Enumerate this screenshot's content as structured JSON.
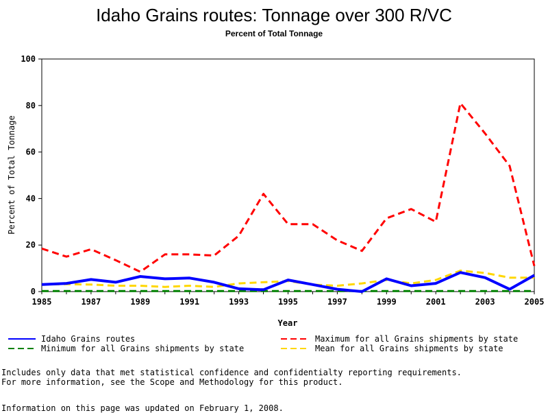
{
  "chart_data": {
    "type": "line",
    "title": "Idaho Grains routes: Tonnage over 300 R/VC",
    "subtitle": "Percent of Total Tonnage",
    "xlabel": "Year",
    "ylabel": "Percent of Total Tonnage",
    "xlim": [
      1985,
      2005
    ],
    "ylim": [
      0,
      100
    ],
    "x_ticks": [
      "1985",
      "1987",
      "1989",
      "1991",
      "1993",
      "1995",
      "1997",
      "1999",
      "2001",
      "2003",
      "2005"
    ],
    "y_ticks": [
      "0",
      "20",
      "40",
      "60",
      "80",
      "100"
    ],
    "x": [
      1985,
      1986,
      1987,
      1988,
      1989,
      1990,
      1991,
      1992,
      1993,
      1994,
      1995,
      1996,
      1997,
      1998,
      1999,
      2000,
      2001,
      2002,
      2003,
      2004,
      2005
    ],
    "series": [
      {
        "name": "Idaho Grains routes",
        "color": "#0000ff",
        "dash": "solid",
        "values": [
          3.0,
          3.5,
          5.2,
          4.0,
          6.5,
          5.5,
          5.8,
          4.0,
          1.2,
          0.8,
          5.0,
          3.0,
          1.0,
          0.0,
          5.5,
          2.5,
          3.5,
          8.2,
          6.0,
          1.0,
          7.0
        ]
      },
      {
        "name": "Maximum for all Grains shipments by state",
        "color": "#ff0000",
        "dash": "dashed",
        "values": [
          18.5,
          15.0,
          18.2,
          13.5,
          8.5,
          16.0,
          16.0,
          15.5,
          24.0,
          42.0,
          29.0,
          29.0,
          22.0,
          17.5,
          31.5,
          35.5,
          30.0,
          81.0,
          68.0,
          54.0,
          11.0
        ]
      },
      {
        "name": "Minimum for all Grains shipments by state",
        "color": "#008000",
        "dash": "dashed",
        "values": [
          0.2,
          0.2,
          0.2,
          0.2,
          0.2,
          0.2,
          0.2,
          0.2,
          0.2,
          0.2,
          0.2,
          0.2,
          0.2,
          0.2,
          0.2,
          0.2,
          0.2,
          0.2,
          0.2,
          0.2,
          0.2
        ]
      },
      {
        "name": "Mean for all Grains shipments by state",
        "color": "#ffd700",
        "dash": "dashed",
        "values": [
          3.0,
          3.2,
          3.0,
          2.5,
          2.5,
          2.0,
          2.5,
          2.0,
          3.5,
          4.0,
          4.5,
          3.0,
          2.5,
          3.5,
          5.0,
          3.5,
          5.0,
          9.0,
          8.0,
          6.0,
          6.0
        ]
      }
    ],
    "legend_placement": "bottom",
    "grid": false
  },
  "footnotes": {
    "line1": "Includes only data that met statistical confidence and confidentialty reporting requirements.",
    "line2": "For more information, see the Scope and Methodology for this product.",
    "updated": "Information on this page was updated on February 1, 2008."
  }
}
